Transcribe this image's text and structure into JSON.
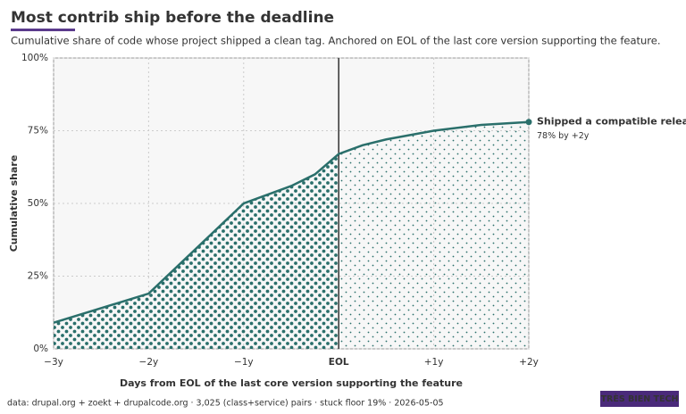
{
  "chart_data": {
    "type": "line",
    "title": "Most contrib ship before the deadline",
    "subtitle": "Cumulative share of code whose project shipped a clean tag. Anchored on EOL of the last core version supporting the feature.",
    "x_label": "Days from EOL of the last core version supporting the feature",
    "y_label": "Cumulative share",
    "x": [
      -3,
      -2,
      -1,
      -0.5,
      -0.25,
      0,
      0.25,
      0.5,
      1,
      1.5,
      2
    ],
    "series": [
      {
        "name": "Shipped a compatible release",
        "color": "#2a6f6b",
        "values": [
          9,
          19,
          50,
          56,
          60,
          67,
          70,
          72,
          75,
          77,
          78
        ]
      }
    ],
    "annotation": "78% by +2y",
    "xlim": [
      -3,
      2
    ],
    "ylim": [
      0,
      100
    ],
    "xticks": [
      {
        "value": -3,
        "label": "−3y"
      },
      {
        "value": -2,
        "label": "−2y"
      },
      {
        "value": -1,
        "label": "−1y"
      },
      {
        "value": 0,
        "label": "EOL"
      },
      {
        "value": 1,
        "label": "+1y"
      },
      {
        "value": 2,
        "label": "+2y"
      }
    ],
    "yticks": [
      {
        "value": 0,
        "label": "0%"
      },
      {
        "value": 25,
        "label": "25%"
      },
      {
        "value": 50,
        "label": "50%"
      },
      {
        "value": 75,
        "label": "75%"
      },
      {
        "value": 100,
        "label": "100%"
      }
    ],
    "marker_x": 0,
    "grid": true,
    "footer": "data: drupal.org + zoekt + drupalcode.org · 3,025 (class+service) pairs · stuck floor 19% · 2026-05-05",
    "brand": "TRÈS BIEN TECH"
  }
}
